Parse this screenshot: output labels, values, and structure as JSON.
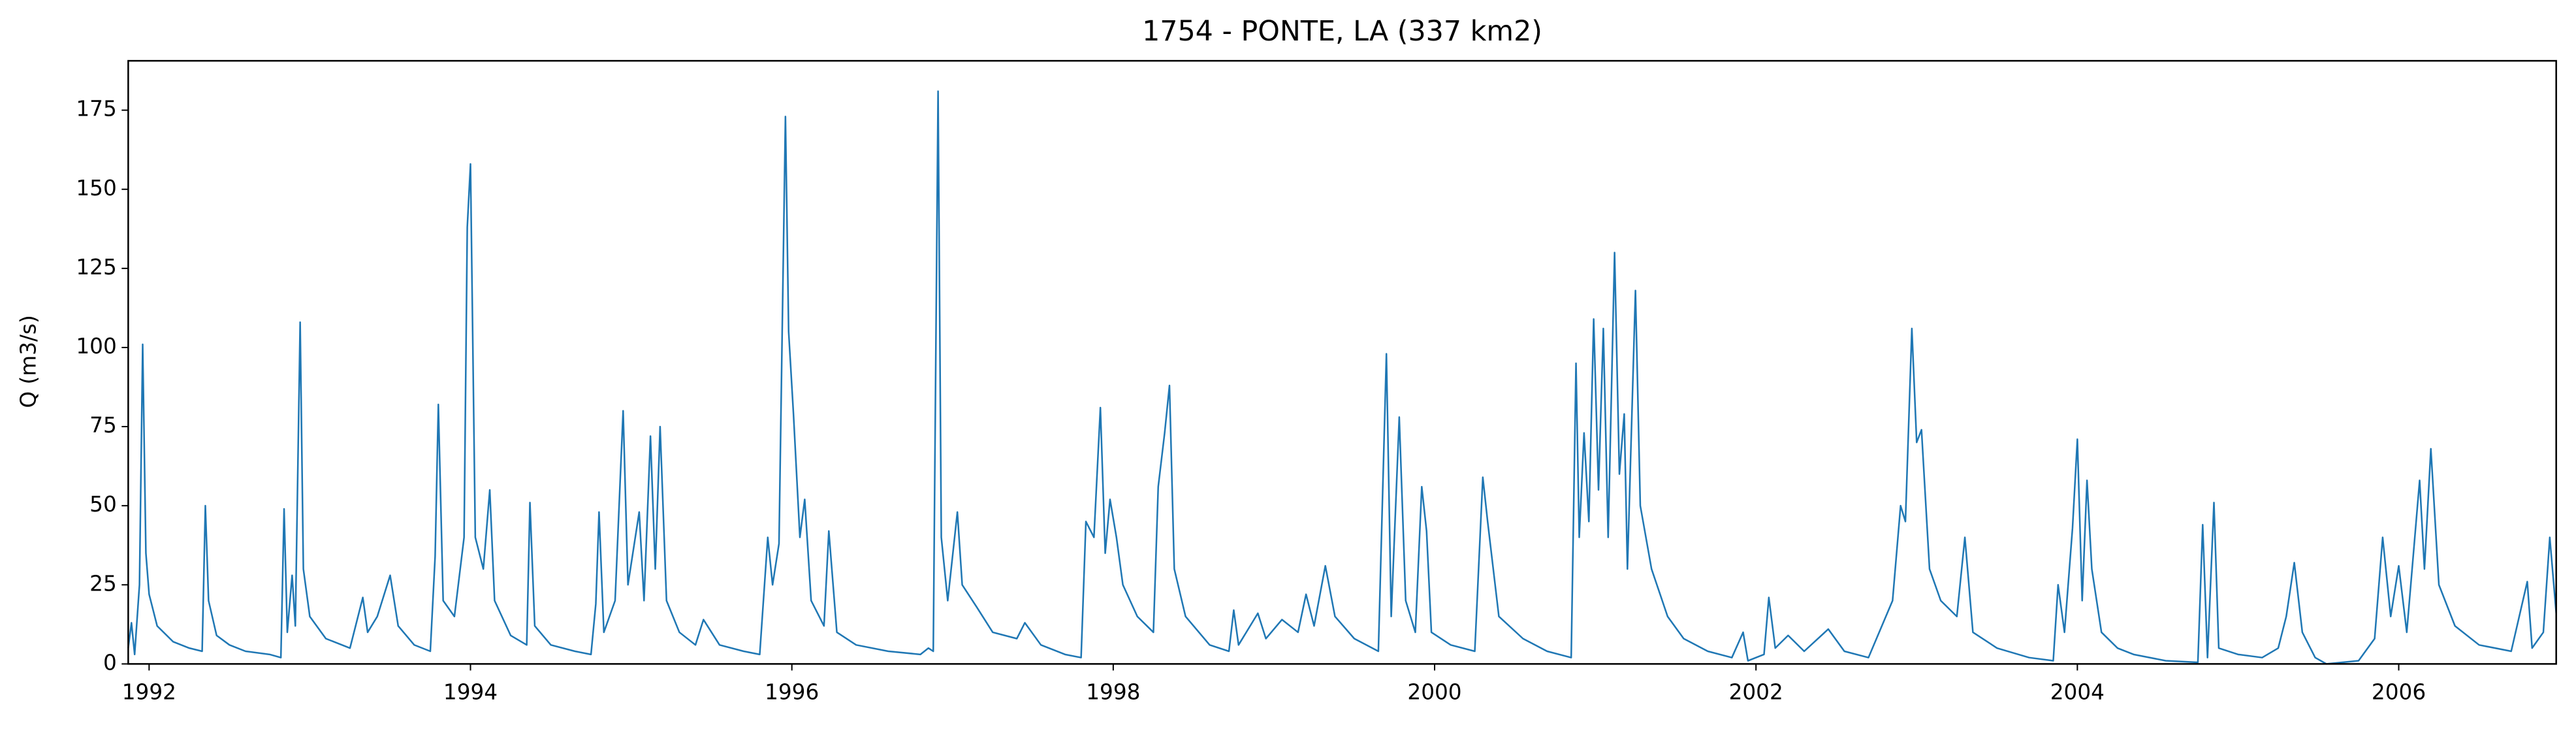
{
  "chart_data": {
    "type": "line",
    "title": "1754 - PONTE, LA (337 km2)",
    "y_label": "Q (m3/s)",
    "xlim": [
      1991.87,
      2006.98
    ],
    "ylim": [
      0,
      190.6
    ],
    "xticks": [
      1992,
      1994,
      1996,
      1998,
      2000,
      2002,
      2004,
      2006
    ],
    "yticks": [
      0,
      25,
      50,
      75,
      100,
      125,
      150,
      175
    ],
    "grid": false,
    "series": [
      {
        "color": "#1f77b4",
        "x": [
          1991.87,
          1991.89,
          1991.91,
          1991.94,
          1991.96,
          1991.98,
          1992.0,
          1992.05,
          1992.15,
          1992.25,
          1992.33,
          1992.35,
          1992.37,
          1992.42,
          1992.5,
          1992.6,
          1992.75,
          1992.82,
          1992.84,
          1992.86,
          1992.89,
          1992.91,
          1992.94,
          1992.96,
          1993.0,
          1993.1,
          1993.25,
          1993.33,
          1993.36,
          1993.42,
          1993.5,
          1993.55,
          1993.65,
          1993.75,
          1993.78,
          1993.8,
          1993.83,
          1993.9,
          1993.96,
          1993.98,
          1994.0,
          1994.03,
          1994.08,
          1994.12,
          1994.15,
          1994.25,
          1994.35,
          1994.37,
          1994.4,
          1994.5,
          1994.65,
          1994.75,
          1994.78,
          1994.8,
          1994.83,
          1994.9,
          1994.95,
          1994.98,
          1995.05,
          1995.08,
          1995.12,
          1995.15,
          1995.18,
          1995.22,
          1995.3,
          1995.4,
          1995.45,
          1995.55,
          1995.7,
          1995.8,
          1995.85,
          1995.88,
          1995.92,
          1995.96,
          1995.98,
          1996.01,
          1996.05,
          1996.08,
          1996.12,
          1996.2,
          1996.23,
          1996.28,
          1996.4,
          1996.6,
          1996.8,
          1996.85,
          1996.88,
          1996.91,
          1996.93,
          1996.97,
          1997.03,
          1997.06,
          1997.15,
          1997.25,
          1997.4,
          1997.45,
          1997.55,
          1997.7,
          1997.8,
          1997.83,
          1997.88,
          1997.92,
          1997.95,
          1997.98,
          1998.02,
          1998.06,
          1998.15,
          1998.25,
          1998.28,
          1998.32,
          1998.35,
          1998.38,
          1998.45,
          1998.6,
          1998.72,
          1998.75,
          1998.78,
          1998.9,
          1998.95,
          1999.05,
          1999.15,
          1999.2,
          1999.25,
          1999.32,
          1999.38,
          1999.5,
          1999.65,
          1999.7,
          1999.73,
          1999.78,
          1999.82,
          1999.88,
          1999.92,
          1999.95,
          1999.98,
          2000.1,
          2000.25,
          2000.3,
          2000.33,
          2000.4,
          2000.55,
          2000.7,
          2000.85,
          2000.88,
          2000.9,
          2000.93,
          2000.96,
          2000.99,
          2001.02,
          2001.05,
          2001.08,
          2001.12,
          2001.15,
          2001.18,
          2001.2,
          2001.25,
          2001.28,
          2001.35,
          2001.45,
          2001.55,
          2001.7,
          2001.85,
          2001.92,
          2001.95,
          2002.05,
          2002.08,
          2002.12,
          2002.2,
          2002.3,
          2002.45,
          2002.55,
          2002.7,
          2002.85,
          2002.9,
          2002.93,
          2002.97,
          2003.0,
          2003.03,
          2003.08,
          2003.15,
          2003.25,
          2003.3,
          2003.35,
          2003.5,
          2003.7,
          2003.85,
          2003.88,
          2003.92,
          2003.97,
          2004.0,
          2004.03,
          2004.06,
          2004.09,
          2004.15,
          2004.25,
          2004.35,
          2004.55,
          2004.75,
          2004.78,
          2004.81,
          2004.85,
          2004.88,
          2005.0,
          2005.15,
          2005.25,
          2005.3,
          2005.35,
          2005.4,
          2005.48,
          2005.55,
          2005.75,
          2005.85,
          2005.9,
          2005.95,
          2006.0,
          2006.05,
          2006.13,
          2006.16,
          2006.2,
          2006.25,
          2006.35,
          2006.5,
          2006.7,
          2006.8,
          2006.83,
          2006.9,
          2006.94,
          2006.98
        ],
        "values": [
          5,
          13,
          3,
          25,
          101,
          35,
          22,
          12,
          7,
          5,
          4,
          50,
          20,
          9,
          6,
          4,
          3,
          2,
          49,
          10,
          28,
          12,
          108,
          30,
          15,
          8,
          5,
          21,
          10,
          15,
          28,
          12,
          6,
          4,
          34,
          82,
          20,
          15,
          40,
          138,
          158,
          40,
          30,
          55,
          20,
          9,
          6,
          51,
          12,
          6,
          4,
          3,
          19,
          48,
          10,
          20,
          80,
          25,
          48,
          20,
          72,
          30,
          75,
          20,
          10,
          6,
          14,
          6,
          4,
          3,
          40,
          25,
          38,
          173,
          105,
          79,
          40,
          52,
          20,
          12,
          42,
          10,
          6,
          4,
          3,
          5,
          4,
          181,
          40,
          20,
          48,
          25,
          18,
          10,
          8,
          13,
          6,
          3,
          2,
          45,
          40,
          81,
          35,
          52,
          40,
          25,
          15,
          10,
          56,
          73,
          88,
          30,
          15,
          6,
          4,
          17,
          6,
          16,
          8,
          14,
          10,
          22,
          12,
          31,
          15,
          8,
          4,
          98,
          15,
          78,
          20,
          10,
          56,
          42,
          10,
          6,
          4,
          59,
          45,
          15,
          8,
          4,
          2,
          95,
          40,
          73,
          45,
          109,
          55,
          106,
          40,
          130,
          60,
          79,
          30,
          118,
          50,
          30,
          15,
          8,
          4,
          2,
          10,
          1,
          3,
          21,
          5,
          9,
          4,
          11,
          4,
          2,
          20,
          50,
          45,
          106,
          70,
          74,
          30,
          20,
          15,
          40,
          10,
          5,
          2,
          1,
          25,
          10,
          43,
          71,
          20,
          58,
          30,
          10,
          5,
          3,
          1,
          0.5,
          44,
          2,
          51,
          5,
          3,
          2,
          5,
          15,
          32,
          10,
          2,
          0,
          1,
          8,
          40,
          15,
          31,
          10,
          58,
          30,
          68,
          25,
          12,
          6,
          4,
          26,
          5,
          10,
          40,
          16
        ]
      }
    ]
  }
}
